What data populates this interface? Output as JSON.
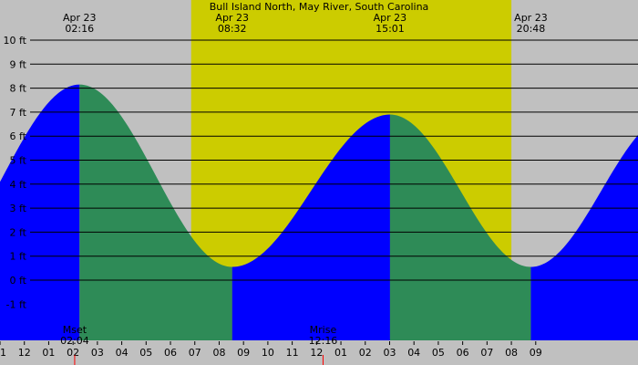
{
  "chart_data": {
    "type": "area",
    "title": "Bull Island North, May River, South Carolina",
    "y_unit": "ft",
    "ylim": [
      -2,
      11
    ],
    "y_ticks": [
      -1,
      0,
      1,
      2,
      3,
      4,
      5,
      6,
      7,
      8,
      9,
      10
    ],
    "y_tick_labels": [
      "-1 ft",
      "0 ft",
      "1 ft",
      "2 ft",
      "3 ft",
      "4 ft",
      "5 ft",
      "6 ft",
      "7 ft",
      "8 ft",
      "9 ft",
      "10 ft"
    ],
    "x_range_hours": [
      -1.0,
      25.2
    ],
    "x_tick_labels": [
      "11",
      "12",
      "01",
      "02",
      "03",
      "04",
      "05",
      "06",
      "07",
      "08",
      "09",
      "10",
      "11",
      "12",
      "01",
      "02",
      "03",
      "04",
      "05",
      "06",
      "07",
      "08",
      "09"
    ],
    "x_tick_hours": [
      -1,
      0,
      1,
      2,
      3,
      4,
      5,
      6,
      7,
      8,
      9,
      10,
      11,
      12,
      13,
      14,
      15,
      16,
      17,
      18,
      19,
      20,
      21
    ],
    "daylight": {
      "start_hour": 6.85,
      "end_hour": 20.0
    },
    "extremes": [
      {
        "date": "Apr 23",
        "time": "02:16",
        "hour": 2.267,
        "type": "high",
        "height_ft": 8.15
      },
      {
        "date": "Apr 23",
        "time": "08:32",
        "hour": 8.533,
        "type": "low",
        "height_ft": 0.55
      },
      {
        "date": "Apr 23",
        "time": "15:01",
        "hour": 15.017,
        "type": "high",
        "height_ft": 6.9
      },
      {
        "date": "Apr 23",
        "time": "20:48",
        "hour": 20.8,
        "type": "low",
        "height_ft": 0.55
      }
    ],
    "moon_events": [
      {
        "label": "Mset",
        "time": "02:04",
        "hour": 2.067
      },
      {
        "label": "Mrise",
        "time": "12:16",
        "hour": 12.267
      }
    ],
    "colors": {
      "background": "#c0c0c0",
      "daylight": "#cccc00",
      "rising": "#0000ff",
      "falling": "#2e8b57",
      "gridline": "#000000",
      "moon_marker": "#ff0000"
    }
  }
}
